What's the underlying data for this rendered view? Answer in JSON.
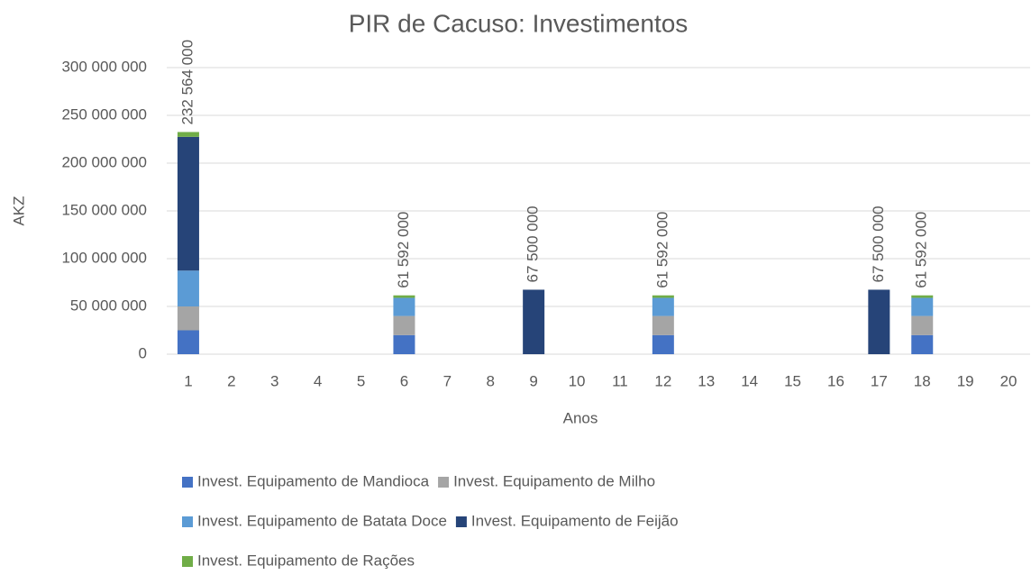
{
  "chart_data": {
    "type": "stacked_bar",
    "title": "PIR de Cacuso: Investimentos",
    "x_label": "Anos",
    "y_label": "AKZ",
    "categories": [
      "1",
      "2",
      "3",
      "4",
      "5",
      "6",
      "7",
      "8",
      "9",
      "10",
      "11",
      "12",
      "13",
      "14",
      "15",
      "16",
      "17",
      "18",
      "19",
      "20"
    ],
    "series": [
      {
        "name": "Invest. Equipamento de Mandioca",
        "color": "#4472c4",
        "values": [
          25000000,
          null,
          null,
          null,
          null,
          20000000,
          null,
          null,
          null,
          null,
          null,
          20000000,
          null,
          null,
          null,
          null,
          null,
          20000000,
          null,
          null
        ]
      },
      {
        "name": "Invest. Equipamento de Milho",
        "color": "#a5a5a5",
        "values": [
          25000000,
          null,
          null,
          null,
          null,
          20000000,
          null,
          null,
          null,
          null,
          null,
          20000000,
          null,
          null,
          null,
          null,
          null,
          20000000,
          null,
          null
        ]
      },
      {
        "name": "Invest. Equipamento de Batata Doce",
        "color": "#5b9bd5",
        "values": [
          37500000,
          null,
          null,
          null,
          null,
          19000000,
          null,
          null,
          null,
          null,
          null,
          19000000,
          null,
          null,
          null,
          null,
          null,
          19000000,
          null,
          null
        ]
      },
      {
        "name": "Invest. Equipamento de Feijão",
        "color": "#264478",
        "values": [
          140000000,
          null,
          null,
          null,
          null,
          null,
          null,
          null,
          67500000,
          null,
          null,
          null,
          null,
          null,
          null,
          null,
          67500000,
          null,
          null,
          null
        ]
      },
      {
        "name": "Invest. Equipamento de Rações",
        "color": "#70ad47",
        "values": [
          5064000,
          null,
          null,
          null,
          null,
          2592000,
          null,
          null,
          null,
          null,
          null,
          2592000,
          null,
          null,
          null,
          null,
          null,
          2592000,
          null,
          null
        ]
      }
    ],
    "totals": [
      232564000,
      null,
      null,
      null,
      null,
      61592000,
      null,
      null,
      67500000,
      null,
      null,
      61592000,
      null,
      null,
      null,
      null,
      67500000,
      61592000,
      null,
      null
    ],
    "total_labels": [
      "232 564 000",
      null,
      null,
      null,
      null,
      "61 592 000",
      null,
      null,
      "67 500 000",
      null,
      null,
      "61 592 000",
      null,
      null,
      null,
      null,
      "67 500 000",
      "61 592 000",
      null,
      null
    ],
    "ylim": [
      0,
      300000000
    ],
    "yticks": [
      0,
      {
        "value": 50000000,
        "label": "50 000 000"
      },
      {
        "value": 100000000,
        "label": "100 000 000"
      },
      {
        "value": 150000000,
        "label": "150 000 000"
      },
      {
        "value": 200000000,
        "label": "200 000 000"
      },
      {
        "value": 250000000,
        "label": "250 000 000"
      },
      {
        "value": 300000000,
        "label": "300 000 000"
      }
    ],
    "grid": true,
    "legend": "bottom"
  }
}
